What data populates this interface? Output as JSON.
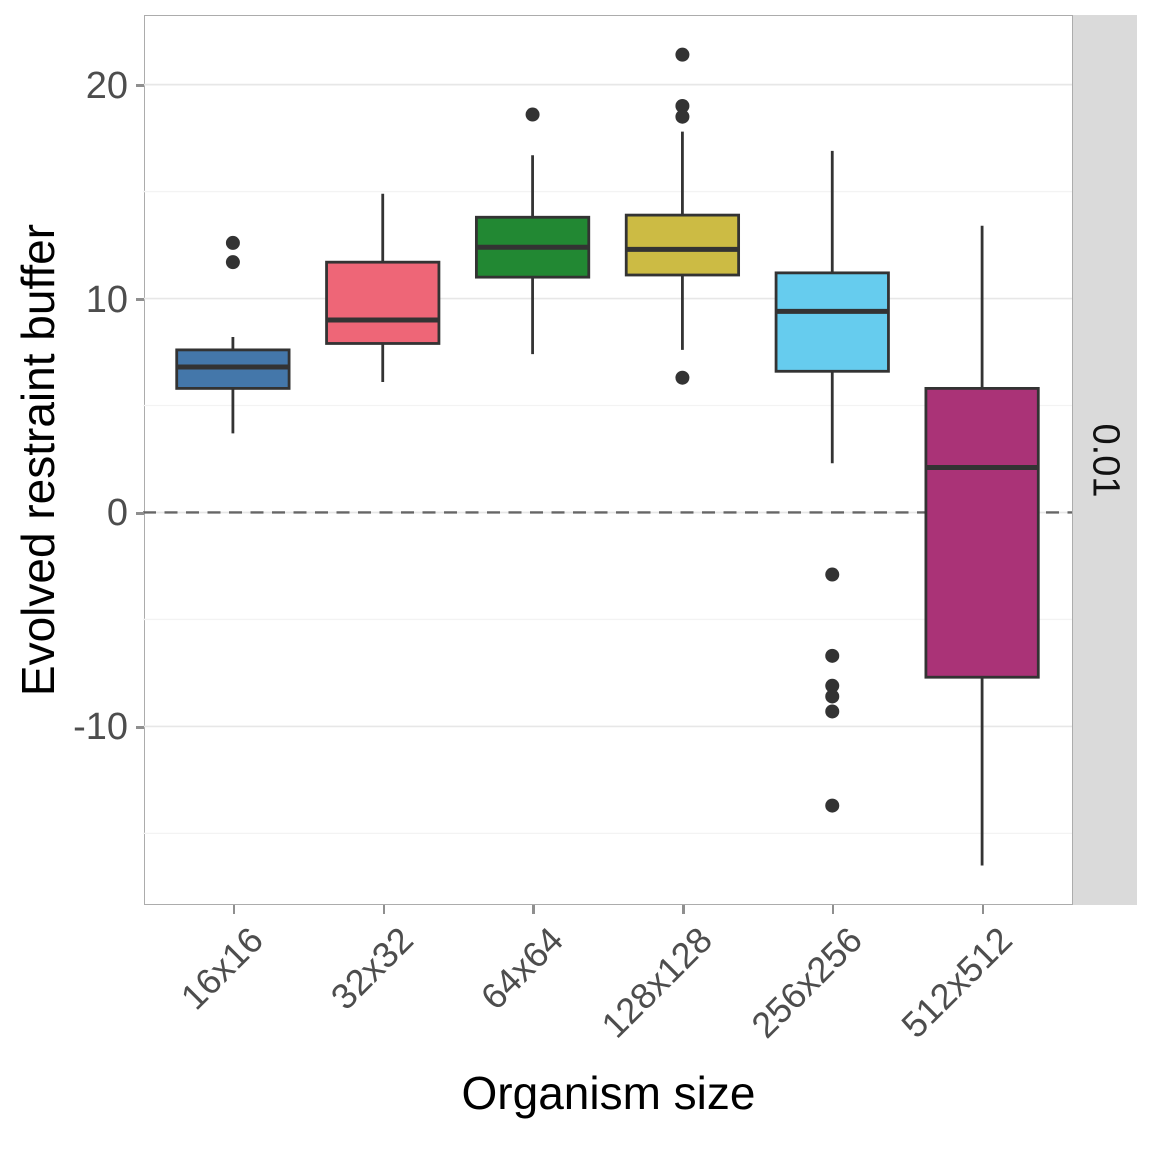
{
  "figure": {
    "x_axis_title": "Organism size",
    "y_axis_title": "Evolved restraint buffer",
    "facet_strip_label": "0.01"
  },
  "chart_data": {
    "type": "boxplot",
    "title": "",
    "xlabel": "Organism size",
    "ylabel": "Evolved restraint buffer",
    "facet_label": "0.01",
    "legend": "none",
    "grid": true,
    "categories": [
      "16x16",
      "32x32",
      "64x64",
      "128x128",
      "256x256",
      "512x512"
    ],
    "y_ticks": [
      20,
      10,
      0,
      -10
    ],
    "y_tick_labels": [
      "20",
      "10",
      "0",
      "-10"
    ],
    "y_minor_ticks": [
      15,
      5,
      -5,
      -15
    ],
    "ylim": [
      -18.3,
      23.3
    ],
    "reference_line": {
      "y": 0,
      "style": "dashed",
      "color": "#666666"
    },
    "series": [
      {
        "category": "16x16",
        "color": "#4477AA",
        "whisker_low": 3.7,
        "q1": 5.8,
        "median": 6.8,
        "q3": 7.6,
        "whisker_high": 8.2,
        "outliers": [
          11.7,
          12.6
        ]
      },
      {
        "category": "32x32",
        "color": "#EE6677",
        "whisker_low": 6.1,
        "q1": 7.9,
        "median": 9.0,
        "q3": 11.7,
        "whisker_high": 14.9,
        "outliers": []
      },
      {
        "category": "64x64",
        "color": "#228833",
        "whisker_low": 7.4,
        "q1": 11.0,
        "median": 12.4,
        "q3": 13.8,
        "whisker_high": 16.7,
        "outliers": [
          18.6
        ]
      },
      {
        "category": "128x128",
        "color": "#CCBB44",
        "whisker_low": 7.6,
        "q1": 11.1,
        "median": 12.3,
        "q3": 13.9,
        "whisker_high": 17.8,
        "outliers": [
          21.4,
          19.0,
          18.5,
          6.3
        ]
      },
      {
        "category": "256x256",
        "color": "#66CCEE",
        "whisker_low": 2.3,
        "q1": 6.6,
        "median": 9.4,
        "q3": 11.2,
        "whisker_high": 16.9,
        "outliers": [
          -2.9,
          -6.7,
          -8.1,
          -8.6,
          -9.3,
          -13.7
        ]
      },
      {
        "category": "512x512",
        "color": "#AA3377",
        "whisker_low": -16.5,
        "q1": -7.7,
        "median": 2.1,
        "q3": 5.8,
        "whisker_high": 13.4,
        "outliers": []
      }
    ],
    "style_colors": {
      "box_stroke": "#333333",
      "outlier_dot": "#333333",
      "major_grid": "#e7e7e7",
      "minor_grid": "#f3f3f3",
      "panel_border": "#acacac",
      "strip_background": "#dadada",
      "tick_label": "#4d4d4d",
      "axis_tick_mark": "#8f8f8f"
    }
  }
}
